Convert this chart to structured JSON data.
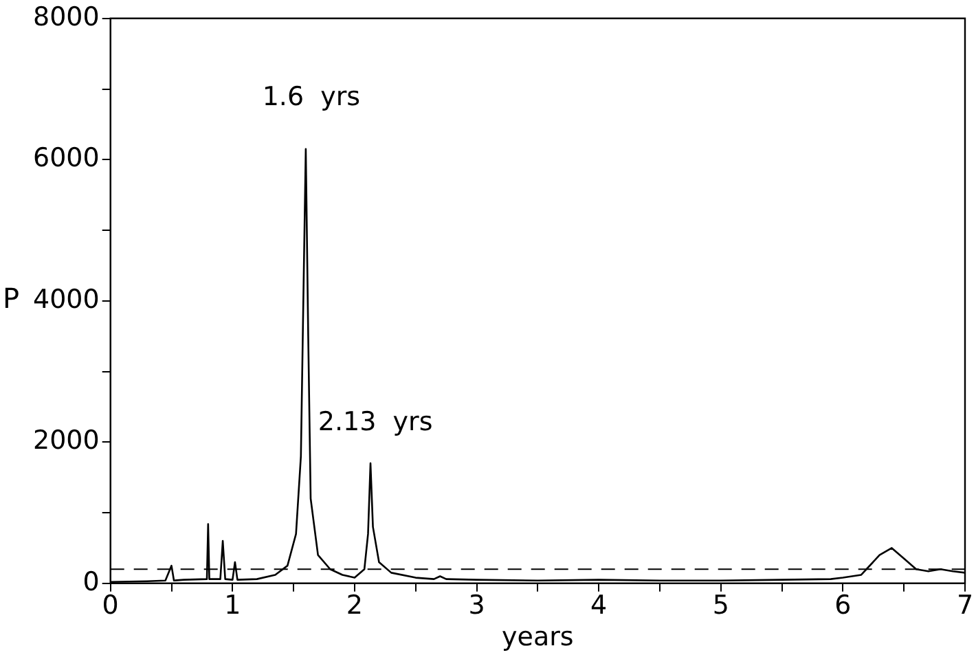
{
  "chart_data": {
    "type": "line",
    "xlabel": "years",
    "ylabel": "P",
    "x": [
      0,
      0.3,
      0.45,
      0.5,
      0.52,
      0.6,
      0.79,
      0.8,
      0.81,
      0.9,
      0.92,
      0.94,
      1.0,
      1.02,
      1.04,
      1.2,
      1.35,
      1.45,
      1.52,
      1.56,
      1.58,
      1.6,
      1.62,
      1.64,
      1.7,
      1.8,
      1.9,
      2.0,
      2.08,
      2.11,
      2.13,
      2.15,
      2.2,
      2.3,
      2.5,
      2.65,
      2.7,
      2.75,
      3,
      3.5,
      4,
      4.5,
      5,
      5.5,
      5.9,
      6.0,
      6.15,
      6.3,
      6.4,
      6.5,
      6.6,
      6.7,
      6.8,
      6.9,
      7
    ],
    "series": [
      {
        "color": "#000000",
        "values": [
          20,
          30,
          40,
          250,
          40,
          50,
          60,
          840,
          60,
          60,
          600,
          60,
          50,
          300,
          50,
          60,
          120,
          250,
          700,
          1800,
          4000,
          6150,
          3500,
          1200,
          400,
          200,
          120,
          80,
          200,
          700,
          1700,
          800,
          300,
          150,
          80,
          60,
          100,
          60,
          50,
          40,
          50,
          40,
          40,
          50,
          60,
          80,
          120,
          400,
          500,
          350,
          200,
          170,
          200,
          170,
          150
        ]
      }
    ],
    "xlim": [
      0,
      7
    ],
    "xticks": [
      0,
      {
        "value": 0.5,
        "label": null
      },
      1,
      {
        "value": 1.5,
        "label": null
      },
      2,
      {
        "value": 2.5,
        "label": null
      },
      3,
      {
        "value": 3.5,
        "label": null
      },
      4,
      {
        "value": 4.5,
        "label": null
      },
      5,
      {
        "value": 5.5,
        "label": null
      },
      6,
      {
        "value": 6.5,
        "label": null
      },
      7
    ],
    "ylim": [
      0,
      8000
    ],
    "yticks": [
      0,
      {
        "value": 1000,
        "label": null
      },
      2000,
      {
        "value": 3000,
        "label": null
      },
      4000,
      {
        "value": 5000,
        "label": null
      },
      6000,
      {
        "value": 7000,
        "label": null
      },
      8000
    ],
    "ref_lines": [
      {
        "axis": "y",
        "value": 200,
        "line_style": "dashed",
        "color": "#000000"
      }
    ],
    "annotations": [
      "1.6  yrs",
      "2.13  yrs"
    ],
    "grid": false,
    "legend": false,
    "marker": "none",
    "line_style": "solid"
  }
}
